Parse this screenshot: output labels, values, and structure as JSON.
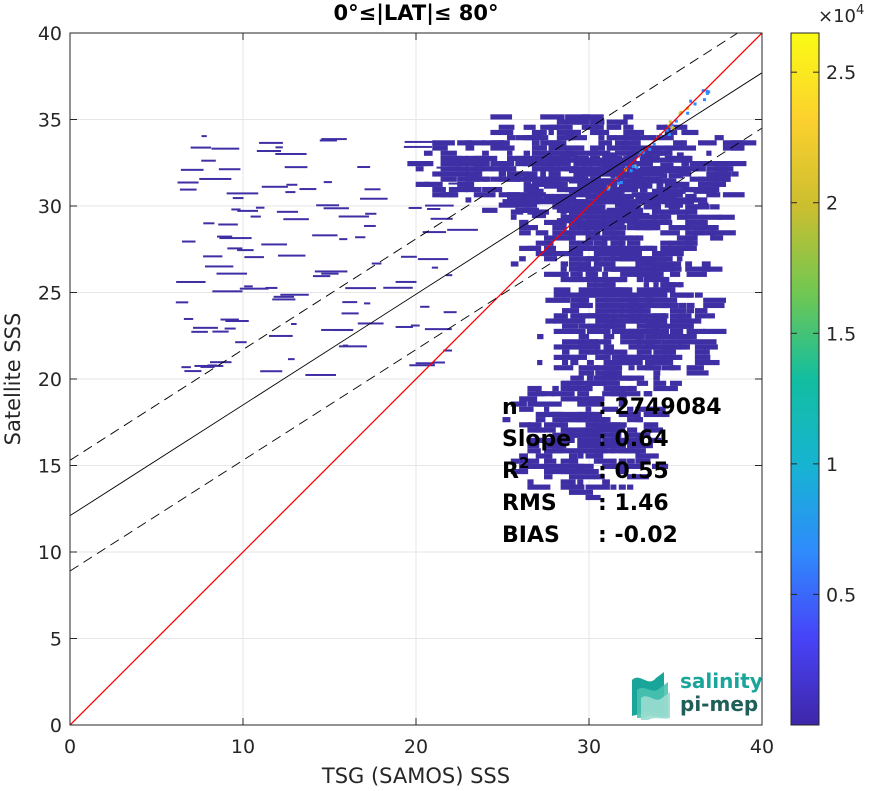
{
  "chart_data": {
    "type": "heatmap",
    "title": "0°≤|LAT|≤ 80°",
    "xlabel": "TSG (SAMOS) SSS",
    "ylabel": "Satellite SSS",
    "xlim": [
      0,
      40
    ],
    "ylim": [
      0,
      40
    ],
    "xticks": [
      "0",
      "10",
      "20",
      "30",
      "40"
    ],
    "yticks": [
      "0",
      "5",
      "10",
      "15",
      "20",
      "25",
      "30",
      "35",
      "40"
    ],
    "grid": true,
    "lines": [
      {
        "name": "1:1",
        "slope": 1,
        "intercept": 0,
        "style": "solid",
        "color": "#ff0000"
      },
      {
        "name": "fit",
        "slope": 0.64,
        "intercept": 12.1,
        "style": "solid",
        "color": "#000000"
      },
      {
        "name": "fit-plus",
        "slope": 0.64,
        "intercept": 15.3,
        "style": "dashed",
        "color": "#000000"
      },
      {
        "name": "fit-minus",
        "slope": 0.64,
        "intercept": 8.9,
        "style": "dashed",
        "color": "#000000"
      }
    ],
    "stats": [
      {
        "label": "n",
        "sup": "",
        "value": ": 2749084"
      },
      {
        "label": "Slope",
        "sup": "",
        "value": ": 0.64"
      },
      {
        "label": "R",
        "sup": "2",
        "value": ": 0.55"
      },
      {
        "label": "RMS",
        "sup": "",
        "value": ": 1.46"
      },
      {
        "label": "BIAS",
        "sup": "",
        "value": ": -0.02"
      }
    ],
    "colorbar": {
      "min": 0,
      "max": 26500,
      "exponent_label": "×10",
      "exponent_power": "4",
      "ticks": [
        {
          "value": 5000,
          "label": "0.5"
        },
        {
          "value": 10000,
          "label": "1"
        },
        {
          "value": 15000,
          "label": "1.5"
        },
        {
          "value": 20000,
          "label": "2"
        },
        {
          "value": 25000,
          "label": "2.5"
        }
      ],
      "colormap": [
        "#3e26a8",
        "#4743f8",
        "#2f8bfc",
        "#16b4d2",
        "#12bea0",
        "#71c751",
        "#ccbe2f",
        "#fcd12e",
        "#f9fb14"
      ]
    },
    "density": {
      "description_color": "#3f2fa5",
      "hotspot": {
        "x": 33.5,
        "y": 33.5,
        "color": "#ccbe2f"
      },
      "cluster": [
        {
          "xmin": 19.5,
          "xmax": 38.5,
          "ymin": 29,
          "ymax": 35
        },
        {
          "xmin": 25,
          "xmax": 37.5,
          "ymin": 25,
          "ymax": 33
        },
        {
          "xmin": 27,
          "xmax": 37,
          "ymin": 19,
          "ymax": 27
        },
        {
          "xmin": 25,
          "xmax": 34,
          "ymin": 13,
          "ymax": 20
        }
      ]
    }
  },
  "logo": {
    "line1": "salinity",
    "line2": "pi-mep"
  }
}
